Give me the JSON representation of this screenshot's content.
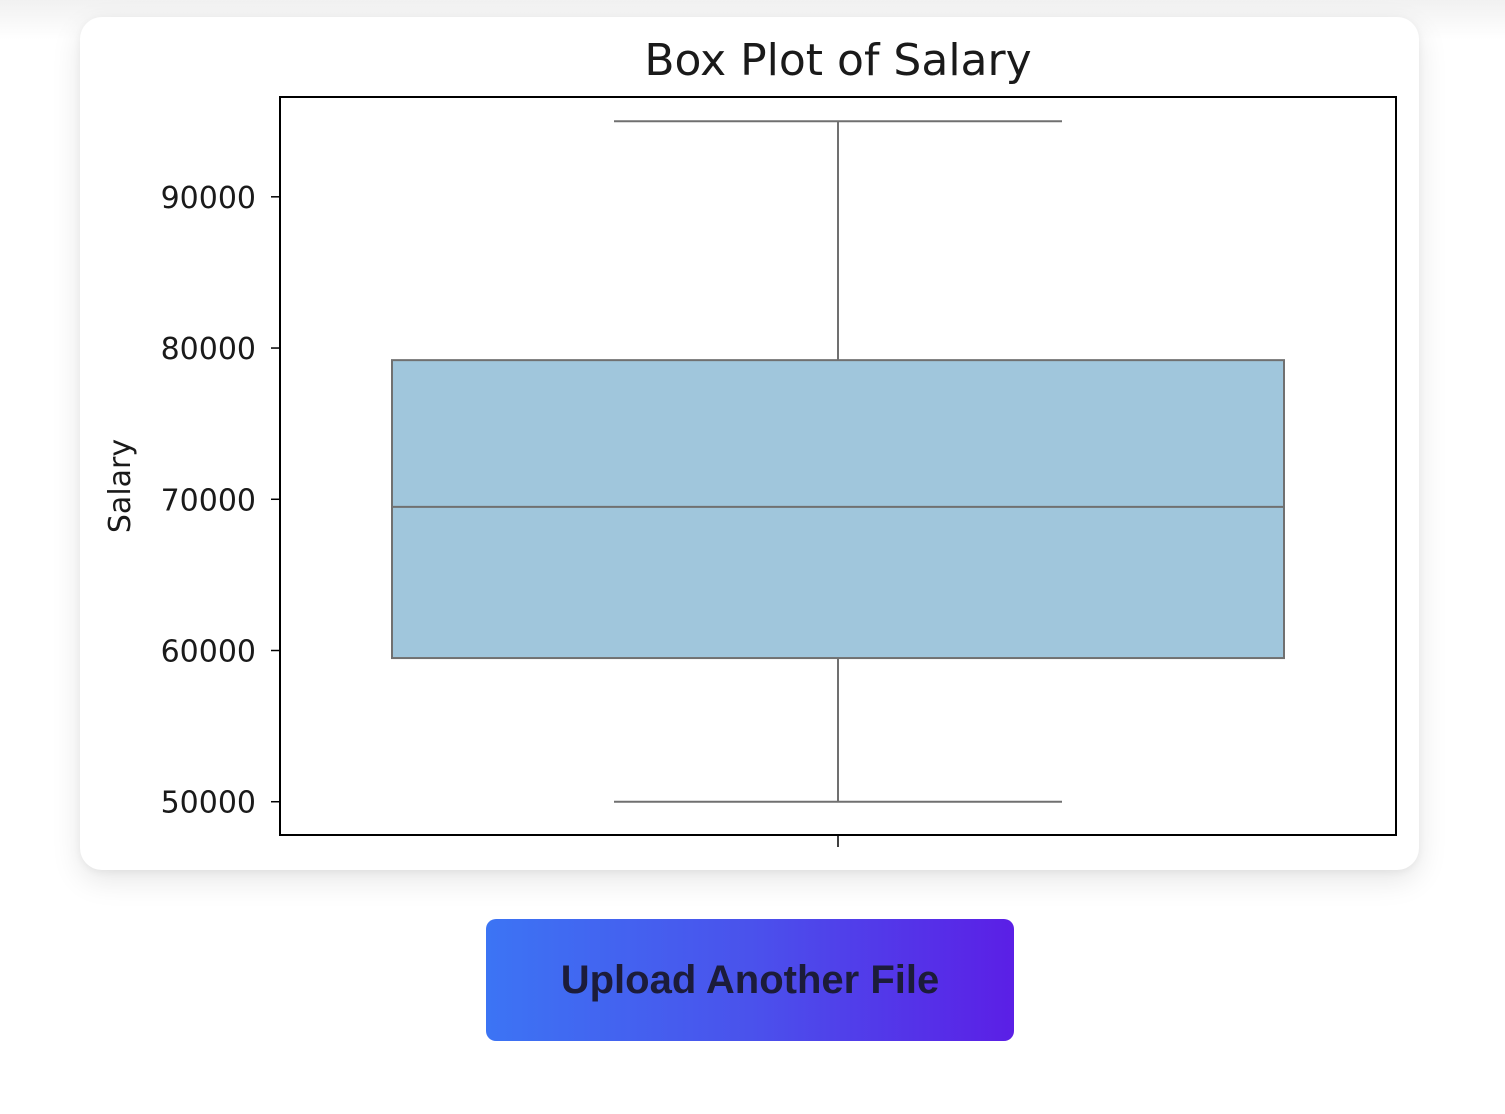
{
  "chart_data": {
    "type": "box",
    "title": "Box Plot of Salary",
    "xlabel": "",
    "ylabel": "Salary",
    "ylim": [
      47800,
      96600
    ],
    "yticks": [
      50000,
      60000,
      70000,
      80000,
      90000
    ],
    "ytick_labels": [
      "50000",
      "60000",
      "70000",
      "80000",
      "90000"
    ],
    "series": [
      {
        "whisker_low": 50000,
        "q1": 59500,
        "median": 69500,
        "q3": 79200,
        "whisker_high": 95000
      }
    ],
    "box_color": "#a0c6dc",
    "line_color": "#707070",
    "grid": false,
    "legend": "none"
  },
  "actions": {
    "upload_label": "Upload Another File"
  },
  "colors": {
    "button_gradient_start": "#3c74f4",
    "button_gradient_end": "#5b1fe6",
    "button_text": "#1c1c3a"
  }
}
